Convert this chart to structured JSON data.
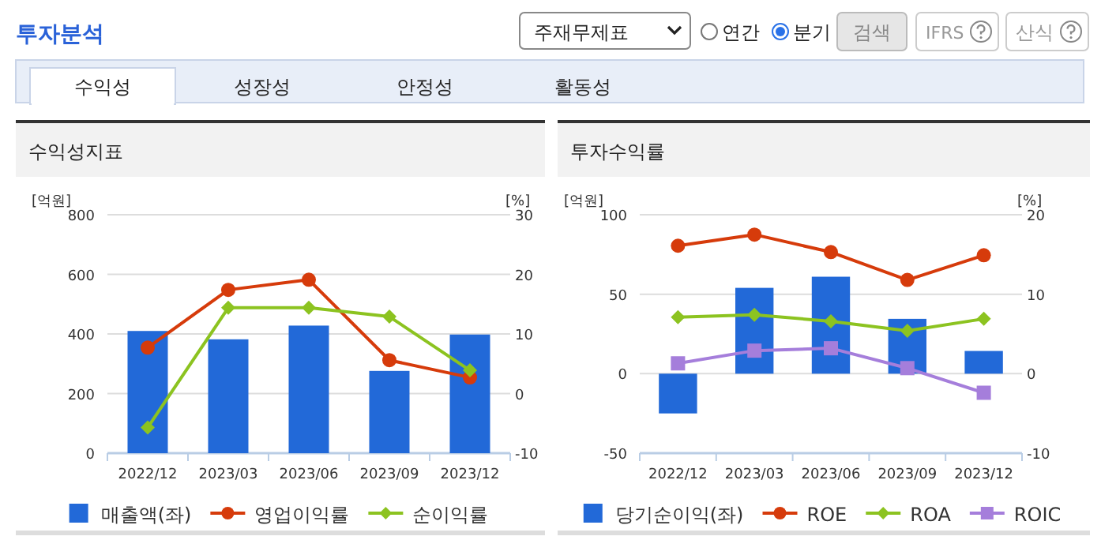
{
  "chart_data": [
    {
      "type": "other",
      "title": "투자분석",
      "annotations": [
        "주재무제표",
        "연간",
        "분기",
        "검색",
        "IFRS",
        "산식",
        "수익성",
        "성장성",
        "안정성",
        "활동성"
      ]
    },
    {
      "type": "bar",
      "title": "수익성지표",
      "ylabel": "[억원]",
      "y2label": "[%]",
      "categories": [
        "2022/12",
        "2023/03",
        "2023/06",
        "2023/09",
        "2023/12"
      ],
      "ylim": [
        0,
        800
      ],
      "yticks": [
        0,
        200,
        400,
        600,
        800
      ],
      "y2lim": [
        -10,
        30
      ],
      "y2ticks": [
        -10,
        0,
        10,
        20,
        30
      ],
      "grid": "y",
      "legend": "bottom",
      "series": [
        {
          "name": "매출액(좌)",
          "type": "bar",
          "color": "#2269d8",
          "values": [
            410,
            382,
            428,
            276,
            398
          ]
        },
        {
          "name": "영업이익률",
          "type": "line",
          "axis": "y2",
          "marker": "circle",
          "color": "#d63b0b",
          "values": [
            7.7,
            17.4,
            19.1,
            5.6,
            2.7
          ]
        },
        {
          "name": "순이익률",
          "type": "line",
          "axis": "y2",
          "marker": "diamond",
          "color": "#8cc320",
          "values": [
            -5.7,
            14.4,
            14.4,
            12.9,
            3.9
          ]
        }
      ]
    },
    {
      "type": "bar",
      "title": "투자수익률",
      "ylabel": "[억원]",
      "y2label": "[%]",
      "categories": [
        "2022/12",
        "2023/03",
        "2023/06",
        "2023/09",
        "2023/12"
      ],
      "ylim": [
        -50,
        100
      ],
      "yticks": [
        -50,
        0,
        50,
        100
      ],
      "y2lim": [
        -10,
        20
      ],
      "y2ticks": [
        -10,
        0,
        10,
        20
      ],
      "grid": "y",
      "legend": "bottom",
      "series": [
        {
          "name": "당기순이익(좌)",
          "type": "bar",
          "color": "#2269d8",
          "values": [
            -25,
            54,
            61,
            34.5,
            14.3
          ]
        },
        {
          "name": "ROE",
          "type": "line",
          "axis": "y2",
          "marker": "circle",
          "color": "#d63b0b",
          "values": [
            16.1,
            17.5,
            15.3,
            11.8,
            14.9
          ]
        },
        {
          "name": "ROA",
          "type": "line",
          "axis": "y2",
          "marker": "diamond",
          "color": "#8cc320",
          "values": [
            7.1,
            7.4,
            6.6,
            5.4,
            6.9
          ]
        },
        {
          "name": "ROIC",
          "type": "line",
          "axis": "y2",
          "marker": "square",
          "color": "#a57edb",
          "values": [
            1.3,
            2.9,
            3.2,
            0.7,
            -2.4
          ]
        }
      ]
    }
  ]
}
